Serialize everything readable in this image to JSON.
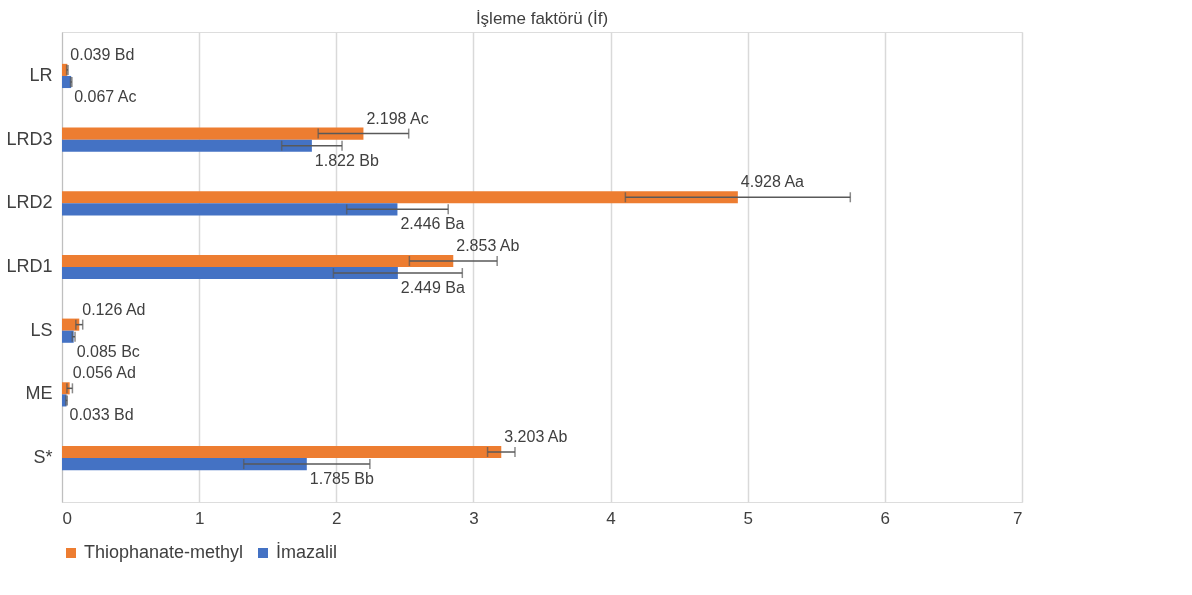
{
  "chart_data": {
    "type": "bar",
    "orientation": "horizontal",
    "title": "İşleme faktörü (İf)",
    "categories": [
      "LR",
      "LRD3",
      "LRD2",
      "LRD1",
      "LS",
      "ME",
      "S*"
    ],
    "series": [
      {
        "name": "Thiophanate-methyl",
        "color": "#ed7d31",
        "values": [
          0.039,
          2.198,
          4.928,
          2.853,
          0.126,
          0.056,
          3.203
        ],
        "errors": [
          0.005,
          0.33,
          0.82,
          0.32,
          0.025,
          0.02,
          0.1
        ],
        "value_labels": [
          "0.039 Bd",
          "2.198 Ac",
          "4.928 Aa",
          "2.853 Ab",
          "0.126 Ad",
          "0.056 Ad",
          "3.203 Ab"
        ]
      },
      {
        "name": "İmazalil",
        "color": "#4472c4",
        "values": [
          0.067,
          1.822,
          2.446,
          2.449,
          0.085,
          0.033,
          1.785
        ],
        "errors": [
          0.005,
          0.22,
          0.37,
          0.47,
          0.01,
          0.005,
          0.46
        ],
        "value_labels": [
          "0.067 Ac",
          "1.822 Bb",
          "2.446 Ba",
          "2.449 Ba",
          "0.085 Bc",
          "0.033 Bd",
          "1.785 Bb"
        ]
      }
    ],
    "xlim": [
      0,
      7
    ],
    "xticks": [
      0,
      1,
      2,
      3,
      4,
      5,
      6,
      7
    ],
    "grid": "x",
    "legend": "bottom"
  }
}
